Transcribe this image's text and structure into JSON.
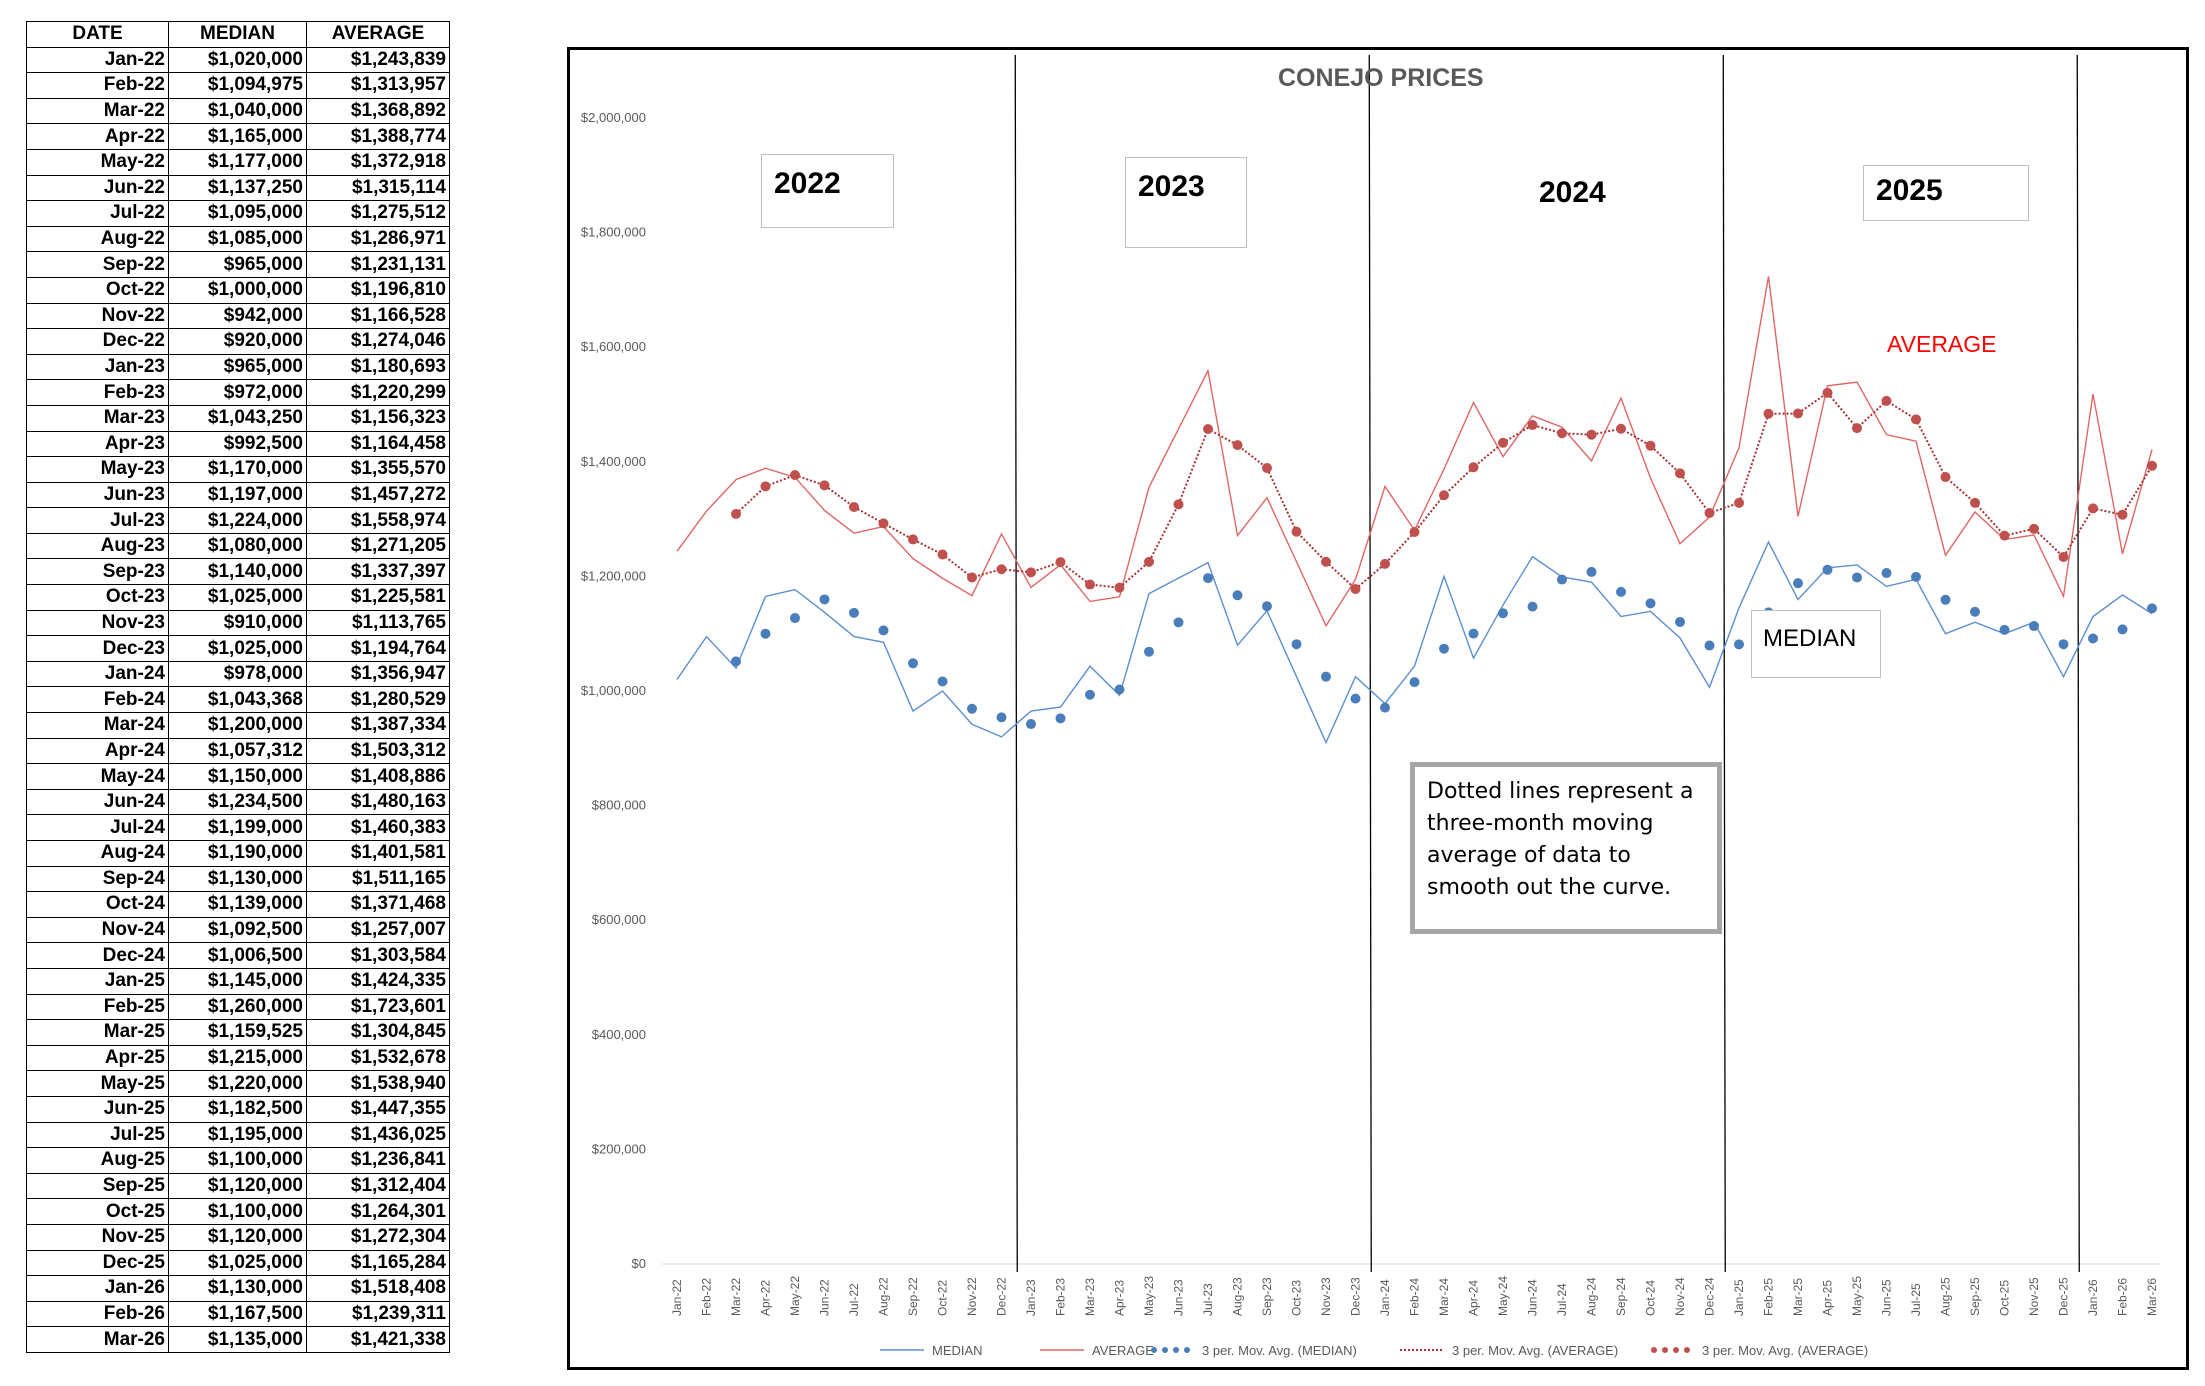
{
  "table": {
    "headers": [
      "DATE",
      "MEDIAN",
      "AVERAGE"
    ],
    "rows": [
      [
        "Jan-22",
        "$1,020,000",
        "$1,243,839"
      ],
      [
        "Feb-22",
        "$1,094,975",
        "$1,313,957"
      ],
      [
        "Mar-22",
        "$1,040,000",
        "$1,368,892"
      ],
      [
        "Apr-22",
        "$1,165,000",
        "$1,388,774"
      ],
      [
        "May-22",
        "$1,177,000",
        "$1,372,918"
      ],
      [
        "Jun-22",
        "$1,137,250",
        "$1,315,114"
      ],
      [
        "Jul-22",
        "$1,095,000",
        "$1,275,512"
      ],
      [
        "Aug-22",
        "$1,085,000",
        "$1,286,971"
      ],
      [
        "Sep-22",
        "$965,000",
        "$1,231,131"
      ],
      [
        "Oct-22",
        "$1,000,000",
        "$1,196,810"
      ],
      [
        "Nov-22",
        "$942,000",
        "$1,166,528"
      ],
      [
        "Dec-22",
        "$920,000",
        "$1,274,046"
      ],
      [
        "Jan-23",
        "$965,000",
        "$1,180,693"
      ],
      [
        "Feb-23",
        "$972,000",
        "$1,220,299"
      ],
      [
        "Mar-23",
        "$1,043,250",
        "$1,156,323"
      ],
      [
        "Apr-23",
        "$992,500",
        "$1,164,458"
      ],
      [
        "May-23",
        "$1,170,000",
        "$1,355,570"
      ],
      [
        "Jun-23",
        "$1,197,000",
        "$1,457,272"
      ],
      [
        "Jul-23",
        "$1,224,000",
        "$1,558,974"
      ],
      [
        "Aug-23",
        "$1,080,000",
        "$1,271,205"
      ],
      [
        "Sep-23",
        "$1,140,000",
        "$1,337,397"
      ],
      [
        "Oct-23",
        "$1,025,000",
        "$1,225,581"
      ],
      [
        "Nov-23",
        "$910,000",
        "$1,113,765"
      ],
      [
        "Dec-23",
        "$1,025,000",
        "$1,194,764"
      ],
      [
        "Jan-24",
        "$978,000",
        "$1,356,947"
      ],
      [
        "Feb-24",
        "$1,043,368",
        "$1,280,529"
      ],
      [
        "Mar-24",
        "$1,200,000",
        "$1,387,334"
      ],
      [
        "Apr-24",
        "$1,057,312",
        "$1,503,312"
      ],
      [
        "May-24",
        "$1,150,000",
        "$1,408,886"
      ],
      [
        "Jun-24",
        "$1,234,500",
        "$1,480,163"
      ],
      [
        "Jul-24",
        "$1,199,000",
        "$1,460,383"
      ],
      [
        "Aug-24",
        "$1,190,000",
        "$1,401,581"
      ],
      [
        "Sep-24",
        "$1,130,000",
        "$1,511,165"
      ],
      [
        "Oct-24",
        "$1,139,000",
        "$1,371,468"
      ],
      [
        "Nov-24",
        "$1,092,500",
        "$1,257,007"
      ],
      [
        "Dec-24",
        "$1,006,500",
        "$1,303,584"
      ],
      [
        "Jan-25",
        "$1,145,000",
        "$1,424,335"
      ],
      [
        "Feb-25",
        "$1,260,000",
        "$1,723,601"
      ],
      [
        "Mar-25",
        "$1,159,525",
        "$1,304,845"
      ],
      [
        "Apr-25",
        "$1,215,000",
        "$1,532,678"
      ],
      [
        "May-25",
        "$1,220,000",
        "$1,538,940"
      ],
      [
        "Jun-25",
        "$1,182,500",
        "$1,447,355"
      ],
      [
        "Jul-25",
        "$1,195,000",
        "$1,436,025"
      ],
      [
        "Aug-25",
        "$1,100,000",
        "$1,236,841"
      ],
      [
        "Sep-25",
        "$1,120,000",
        "$1,312,404"
      ],
      [
        "Oct-25",
        "$1,100,000",
        "$1,264,301"
      ],
      [
        "Nov-25",
        "$1,120,000",
        "$1,272,304"
      ],
      [
        "Dec-25",
        "$1,025,000",
        "$1,165,284"
      ],
      [
        "Jan-26",
        "$1,130,000",
        "$1,518,408"
      ],
      [
        "Feb-26",
        "$1,167,500",
        "$1,239,311"
      ],
      [
        "Mar-26",
        "$1,135,000",
        "$1,421,338"
      ]
    ]
  },
  "chart_data": {
    "type": "line",
    "title": "CONEJO PRICES",
    "x": [
      "Jan-22",
      "Feb-22",
      "Mar-22",
      "Apr-22",
      "May-22",
      "Jun-22",
      "Jul-22",
      "Aug-22",
      "Sep-22",
      "Oct-22",
      "Nov-22",
      "Dec-22",
      "Jan-23",
      "Feb-23",
      "Mar-23",
      "Apr-23",
      "May-23",
      "Jun-23",
      "Jul-23",
      "Aug-23",
      "Sep-23",
      "Oct-23",
      "Nov-23",
      "Dec-23",
      "Jan-24",
      "Feb-24",
      "Mar-24",
      "Apr-24",
      "May-24",
      "Jun-24",
      "Jul-24",
      "Aug-24",
      "Sep-24",
      "Oct-24",
      "Nov-24",
      "Dec-24",
      "Jan-25",
      "Feb-25",
      "Mar-25",
      "Apr-25",
      "May-25",
      "Jun-25",
      "Jul-25",
      "Aug-25",
      "Sep-25",
      "Oct-25",
      "Nov-25",
      "Dec-25",
      "Jan-26",
      "Feb-26",
      "Mar-26"
    ],
    "series": [
      {
        "name": "MEDIAN",
        "style": "solid",
        "color": "#5b8fd1",
        "values": [
          1020000,
          1094975,
          1040000,
          1165000,
          1177000,
          1137250,
          1095000,
          1085000,
          965000,
          1000000,
          942000,
          920000,
          965000,
          972000,
          1043250,
          992500,
          1170000,
          1197000,
          1224000,
          1080000,
          1140000,
          1025000,
          910000,
          1025000,
          978000,
          1043368,
          1200000,
          1057312,
          1150000,
          1234500,
          1199000,
          1190000,
          1130000,
          1139000,
          1092500,
          1006500,
          1145000,
          1260000,
          1159525,
          1215000,
          1220000,
          1182500,
          1195000,
          1100000,
          1120000,
          1100000,
          1120000,
          1025000,
          1130000,
          1167500,
          1135000
        ]
      },
      {
        "name": "AVERAGE",
        "style": "solid",
        "color": "#e06666",
        "values": [
          1243839,
          1313957,
          1368892,
          1388774,
          1372918,
          1315114,
          1275512,
          1286971,
          1231131,
          1196810,
          1166528,
          1274046,
          1180693,
          1220299,
          1156323,
          1164458,
          1355570,
          1457272,
          1558974,
          1271205,
          1337397,
          1225581,
          1113765,
          1194764,
          1356947,
          1280529,
          1387334,
          1503312,
          1408886,
          1480163,
          1460383,
          1401581,
          1511165,
          1371468,
          1257007,
          1303584,
          1424335,
          1723601,
          1304845,
          1532678,
          1538940,
          1447355,
          1436025,
          1236841,
          1312404,
          1264301,
          1272304,
          1165284,
          1518408,
          1239311,
          1421338
        ]
      },
      {
        "name": "3 per. Mov. Avg. (MEDIAN)",
        "style": "dots",
        "color": "#4a7ebb",
        "moving_average_of": "MEDIAN",
        "period": 3
      },
      {
        "name": "3 per. Mov. Avg. (AVERAGE)",
        "style": "dotted-line",
        "color": "#a83232",
        "moving_average_of": "AVERAGE",
        "period": 3
      },
      {
        "name": "3 per. Mov. Avg. (AVERAGE)",
        "style": "dots",
        "color": "#c0504d",
        "moving_average_of": "AVERAGE",
        "period": 3
      }
    ],
    "ylim": [
      0,
      2000000
    ],
    "yticks": [
      "$0",
      "$200,000",
      "$400,000",
      "$600,000",
      "$800,000",
      "$1,000,000",
      "$1,200,000",
      "$1,400,000",
      "$1,600,000",
      "$1,800,000",
      "$2,000,000"
    ],
    "grid": false,
    "legend_position": "bottom",
    "year_dividers": [
      {
        "after": "Dec-22"
      },
      {
        "after": "Dec-23"
      },
      {
        "after": "Dec-24"
      },
      {
        "after": "Dec-25"
      }
    ],
    "annotations": {
      "year_labels": [
        "2022",
        "2023",
        "2024",
        "2025"
      ],
      "median_label": "MEDIAN",
      "average_label": "AVERAGE",
      "note": "Dotted lines represent a three-month moving average of data to smooth out the curve."
    }
  }
}
